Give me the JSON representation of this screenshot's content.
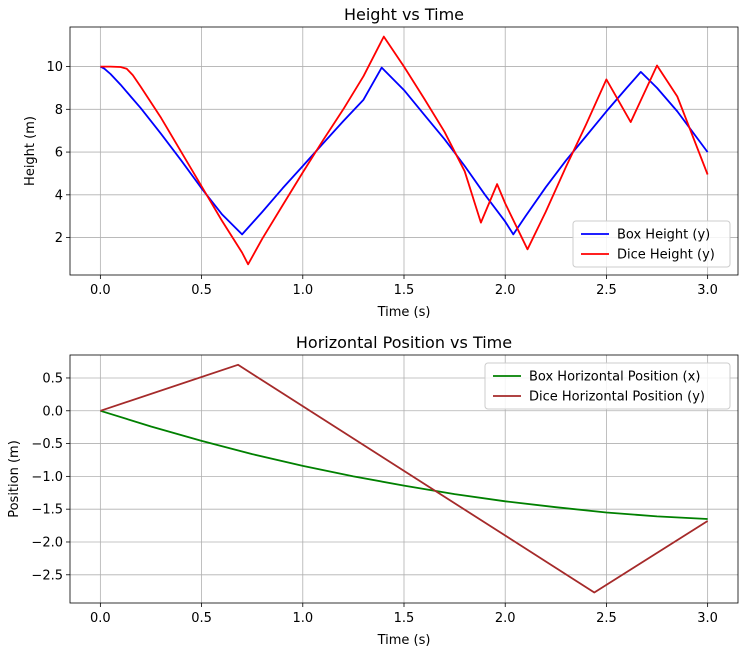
{
  "chart_data": [
    {
      "type": "line",
      "title": "Height vs Time",
      "xlabel": "Time (s)",
      "ylabel": "Height (m)",
      "xlim": [
        -0.15,
        3.15
      ],
      "ylim": [
        0.25,
        11.85
      ],
      "xticks": [
        0.0,
        0.5,
        1.0,
        1.5,
        2.0,
        2.5,
        3.0
      ],
      "xtick_labels": [
        "0.0",
        "0.5",
        "1.0",
        "1.5",
        "2.0",
        "2.5",
        "3.0"
      ],
      "yticks": [
        2,
        4,
        6,
        8,
        10
      ],
      "ytick_labels": [
        "2",
        "4",
        "6",
        "8",
        "10"
      ],
      "grid": true,
      "legend_position": "lower-right",
      "series": [
        {
          "name": "Box Height (y)",
          "color": "#0000ff",
          "points": [
            [
              0.0,
              10.0
            ],
            [
              0.02,
              9.9
            ],
            [
              0.05,
              9.65
            ],
            [
              0.1,
              9.15
            ],
            [
              0.15,
              8.6
            ],
            [
              0.2,
              8.05
            ],
            [
              0.3,
              6.85
            ],
            [
              0.4,
              5.6
            ],
            [
              0.5,
              4.3
            ],
            [
              0.6,
              3.1
            ],
            [
              0.7,
              2.15
            ],
            [
              0.8,
              3.2
            ],
            [
              0.9,
              4.3
            ],
            [
              1.0,
              5.35
            ],
            [
              1.1,
              6.4
            ],
            [
              1.2,
              7.45
            ],
            [
              1.3,
              8.45
            ],
            [
              1.39,
              9.95
            ],
            [
              1.5,
              8.9
            ],
            [
              1.6,
              7.75
            ],
            [
              1.7,
              6.6
            ],
            [
              1.8,
              5.35
            ],
            [
              1.9,
              4.0
            ],
            [
              2.0,
              2.75
            ],
            [
              2.04,
              2.15
            ],
            [
              2.1,
              3.0
            ],
            [
              2.2,
              4.35
            ],
            [
              2.3,
              5.6
            ],
            [
              2.4,
              6.75
            ],
            [
              2.5,
              7.9
            ],
            [
              2.6,
              9.0
            ],
            [
              2.67,
              9.75
            ],
            [
              2.75,
              9.0
            ],
            [
              2.85,
              7.9
            ],
            [
              3.0,
              6.0
            ]
          ]
        },
        {
          "name": "Dice Height (y)",
          "color": "#ff0000",
          "points": [
            [
              0.0,
              10.0
            ],
            [
              0.05,
              10.0
            ],
            [
              0.1,
              9.98
            ],
            [
              0.13,
              9.9
            ],
            [
              0.16,
              9.6
            ],
            [
              0.2,
              9.05
            ],
            [
              0.3,
              7.6
            ],
            [
              0.4,
              6.0
            ],
            [
              0.5,
              4.4
            ],
            [
              0.6,
              2.8
            ],
            [
              0.7,
              1.3
            ],
            [
              0.73,
              0.75
            ],
            [
              0.8,
              1.95
            ],
            [
              0.9,
              3.5
            ],
            [
              1.0,
              5.05
            ],
            [
              1.1,
              6.55
            ],
            [
              1.2,
              8.0
            ],
            [
              1.3,
              9.55
            ],
            [
              1.4,
              11.4
            ],
            [
              1.5,
              10.0
            ],
            [
              1.6,
              8.5
            ],
            [
              1.7,
              6.95
            ],
            [
              1.8,
              5.1
            ],
            [
              1.88,
              2.7
            ],
            [
              1.96,
              4.5
            ],
            [
              2.0,
              3.6
            ],
            [
              2.11,
              1.45
            ],
            [
              2.2,
              3.2
            ],
            [
              2.3,
              5.3
            ],
            [
              2.4,
              7.3
            ],
            [
              2.5,
              9.4
            ],
            [
              2.62,
              7.4
            ],
            [
              2.75,
              10.05
            ],
            [
              2.85,
              8.6
            ],
            [
              3.0,
              4.95
            ]
          ]
        }
      ]
    },
    {
      "type": "line",
      "title": "Horizontal Position vs Time",
      "xlabel": "Time (s)",
      "ylabel": "Position (m)",
      "xlim": [
        -0.15,
        3.15
      ],
      "ylim": [
        -2.93,
        0.85
      ],
      "xticks": [
        0.0,
        0.5,
        1.0,
        1.5,
        2.0,
        2.5,
        3.0
      ],
      "xtick_labels": [
        "0.0",
        "0.5",
        "1.0",
        "1.5",
        "2.0",
        "2.5",
        "3.0"
      ],
      "yticks": [
        0.5,
        0.0,
        -0.5,
        -1.0,
        -1.5,
        -2.0,
        -2.5
      ],
      "ytick_labels": [
        "0.5",
        "0.0",
        "−0.5",
        "−1.0",
        "−1.5",
        "−2.0",
        "−2.5"
      ],
      "grid": true,
      "legend_position": "upper-right",
      "series": [
        {
          "name": "Box Horizontal Position (x)",
          "color": "#008000",
          "points": [
            [
              0.0,
              0.0
            ],
            [
              0.25,
              -0.24
            ],
            [
              0.5,
              -0.46
            ],
            [
              0.75,
              -0.66
            ],
            [
              1.0,
              -0.84
            ],
            [
              1.25,
              -1.0
            ],
            [
              1.5,
              -1.14
            ],
            [
              1.75,
              -1.27
            ],
            [
              2.0,
              -1.38
            ],
            [
              2.25,
              -1.47
            ],
            [
              2.5,
              -1.55
            ],
            [
              2.75,
              -1.61
            ],
            [
              3.0,
              -1.65
            ]
          ]
        },
        {
          "name": "Dice Horizontal Position (y)",
          "color": "#a52a2a",
          "points": [
            [
              0.0,
              0.0
            ],
            [
              0.68,
              0.7
            ],
            [
              2.44,
              -2.77
            ],
            [
              3.0,
              -1.68
            ]
          ]
        }
      ]
    }
  ]
}
